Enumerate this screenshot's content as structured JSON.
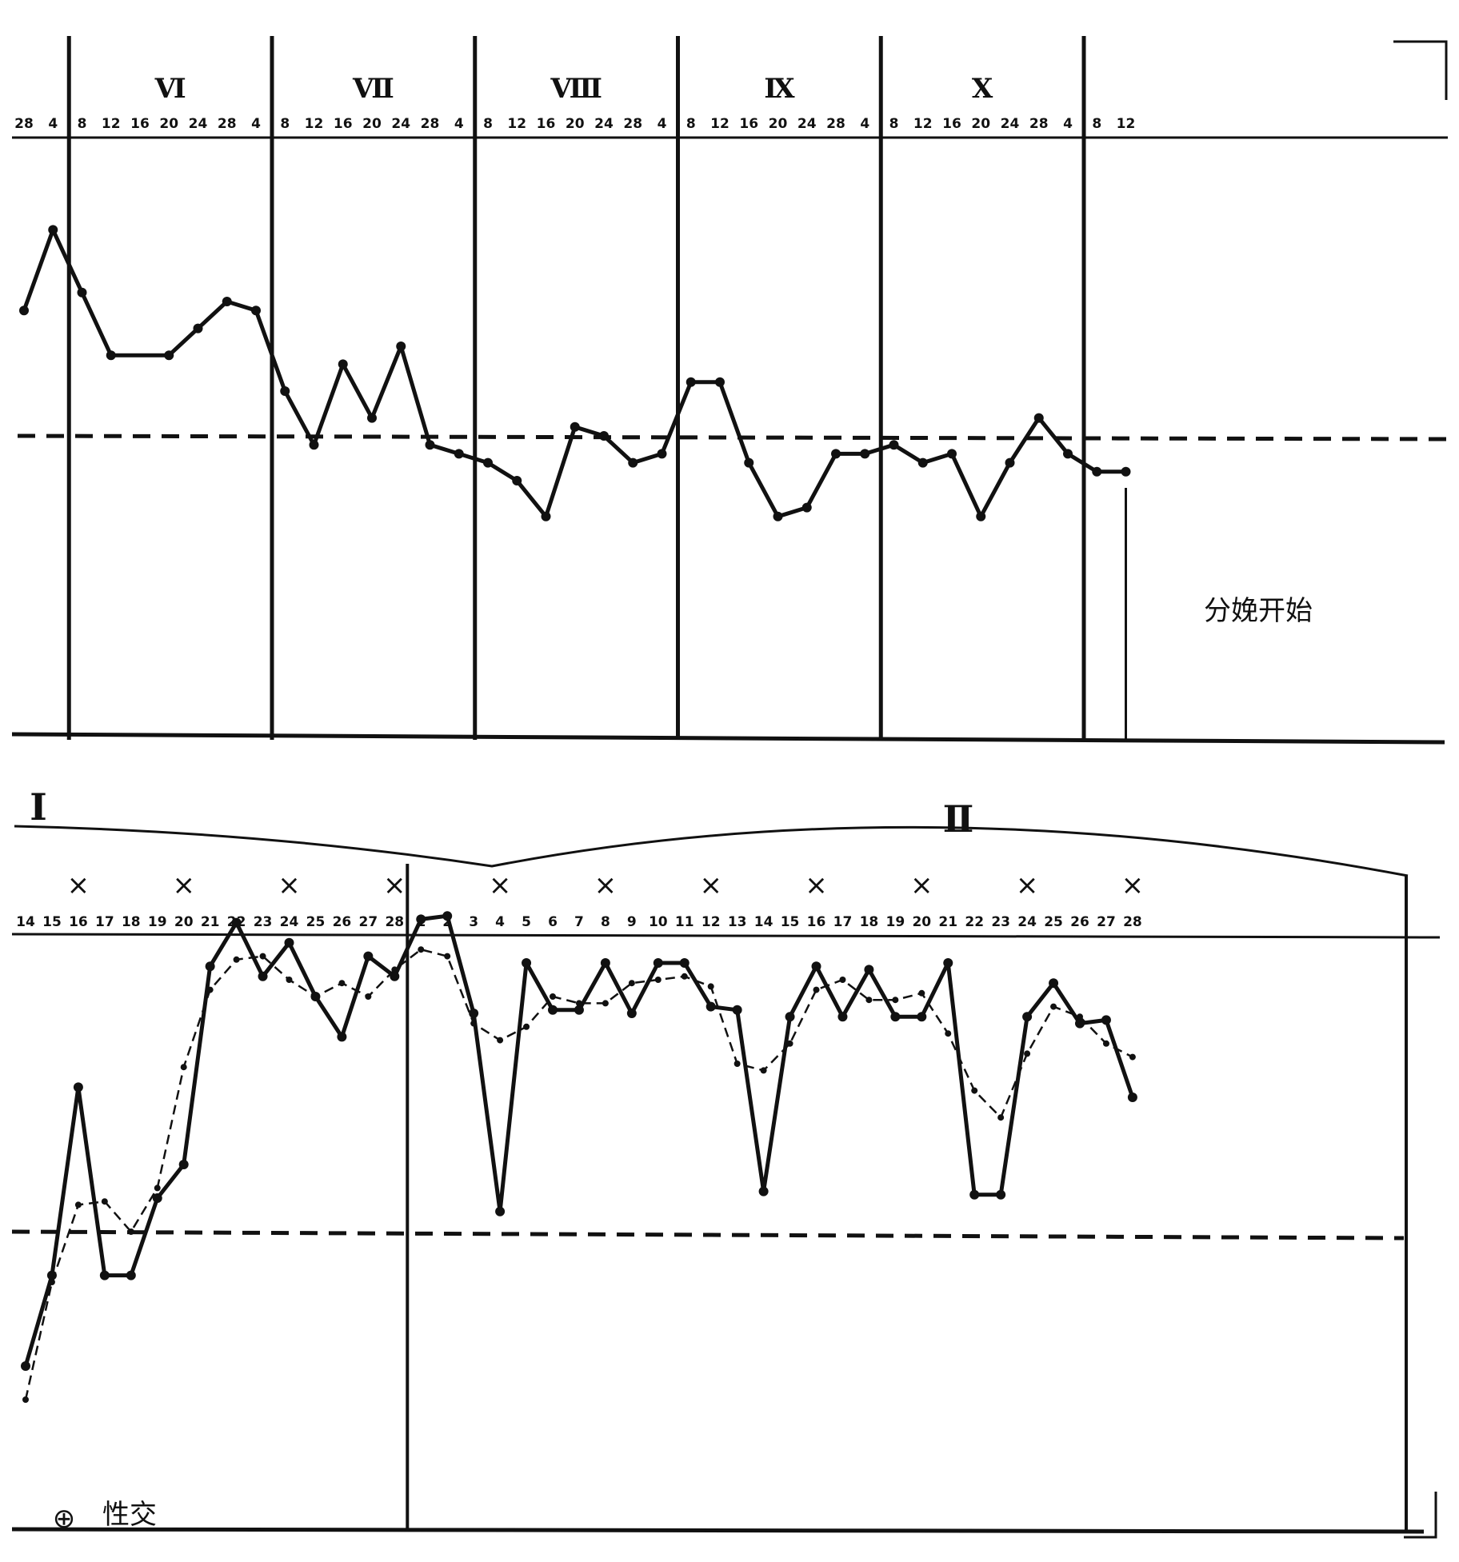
{
  "chart_data": [
    {
      "type": "line",
      "title": "",
      "xlabel": "",
      "ylabel": "",
      "month_labels": [
        "Ⅵ",
        "Ⅶ",
        "Ⅷ",
        "Ⅸ",
        "Ⅹ"
      ],
      "tick_labels": [
        "28",
        "4",
        "8",
        "12",
        "16",
        "20",
        "24",
        "28",
        "4",
        "8",
        "12",
        "16",
        "20",
        "24",
        "28",
        "4",
        "8",
        "12",
        "16",
        "20",
        "24",
        "28",
        "4",
        "8",
        "12",
        "16",
        "20",
        "24",
        "28",
        "4",
        "8",
        "12",
        "16",
        "20",
        "24",
        "28",
        "4",
        "8",
        "12"
      ],
      "threshold_level": 0,
      "series": [
        {
          "style": "solid",
          "points": [
            [
              0,
              1.4
            ],
            [
              1,
              2.3
            ],
            [
              2,
              1.6
            ],
            [
              3,
              0.9
            ],
            [
              5,
              0.9
            ],
            [
              6,
              1.2
            ],
            [
              7,
              1.5
            ],
            [
              8,
              1.4
            ],
            [
              9,
              0.5
            ],
            [
              10,
              -0.1
            ],
            [
              11,
              0.8
            ],
            [
              12,
              0.2
            ],
            [
              13,
              1.0
            ],
            [
              14,
              -0.1
            ],
            [
              15,
              -0.2
            ],
            [
              16,
              -0.3
            ],
            [
              17,
              -0.5
            ],
            [
              18,
              -0.9
            ],
            [
              19,
              0.1
            ],
            [
              20,
              0.0
            ],
            [
              21,
              -0.3
            ],
            [
              22,
              -0.2
            ],
            [
              23,
              0.6
            ],
            [
              24,
              0.6
            ],
            [
              25,
              -0.3
            ],
            [
              26,
              -0.9
            ],
            [
              27,
              -0.8
            ],
            [
              28,
              -0.2
            ],
            [
              29,
              -0.2
            ],
            [
              30,
              -0.1
            ],
            [
              31,
              -0.3
            ],
            [
              32,
              -0.2
            ],
            [
              33,
              -0.9
            ],
            [
              34,
              -0.3
            ],
            [
              35,
              0.2
            ],
            [
              36,
              -0.2
            ],
            [
              37,
              -0.4
            ],
            [
              38,
              -0.4
            ]
          ]
        }
      ],
      "annotation": {
        "text": "分娩开始",
        "x_index": 38
      }
    },
    {
      "type": "line",
      "title": "",
      "xlabel": "",
      "ylabel": "",
      "period_labels": [
        "Ⅰ",
        "Ⅱ"
      ],
      "tick_labels": [
        "14",
        "15",
        "16",
        "17",
        "18",
        "19",
        "20",
        "21",
        "22",
        "23",
        "24",
        "25",
        "26",
        "27",
        "28",
        "1",
        "2",
        "3",
        "4",
        "5",
        "6",
        "7",
        "8",
        "9",
        "10",
        "11",
        "12",
        "13",
        "14",
        "15",
        "16",
        "17",
        "18",
        "19",
        "20",
        "21",
        "22",
        "23",
        "24",
        "25",
        "26",
        "27",
        "28"
      ],
      "x_marks": [
        "16",
        "20",
        "24",
        "28",
        "4",
        "8",
        "12",
        "16",
        "20",
        "24",
        "28"
      ],
      "threshold_level": 0,
      "series": [
        {
          "style": "solid",
          "points": [
            [
              0,
              -0.4
            ],
            [
              1,
              -0.13
            ],
            [
              2,
              0.43
            ],
            [
              3,
              -0.13
            ],
            [
              4,
              -0.13
            ],
            [
              5,
              0.1
            ],
            [
              6,
              0.2
            ],
            [
              7,
              0.79
            ],
            [
              8,
              0.92
            ],
            [
              9,
              0.76
            ],
            [
              10,
              0.86
            ],
            [
              11,
              0.7
            ],
            [
              12,
              0.58
            ],
            [
              13,
              0.82
            ],
            [
              14,
              0.76
            ],
            [
              15,
              0.93
            ],
            [
              16,
              0.94
            ],
            [
              17,
              0.65
            ],
            [
              18,
              0.06
            ],
            [
              19,
              0.8
            ],
            [
              20,
              0.66
            ],
            [
              21,
              0.66
            ],
            [
              22,
              0.8
            ],
            [
              23,
              0.65
            ],
            [
              24,
              0.8
            ],
            [
              25,
              0.8
            ],
            [
              26,
              0.67
            ],
            [
              27,
              0.66
            ],
            [
              28,
              0.12
            ],
            [
              29,
              0.64
            ],
            [
              30,
              0.79
            ],
            [
              31,
              0.64
            ],
            [
              32,
              0.78
            ],
            [
              33,
              0.64
            ],
            [
              34,
              0.64
            ],
            [
              35,
              0.8
            ],
            [
              36,
              0.11
            ],
            [
              37,
              0.11
            ],
            [
              38,
              0.64
            ],
            [
              39,
              0.74
            ],
            [
              40,
              0.62
            ],
            [
              41,
              0.63
            ],
            [
              42,
              0.4
            ]
          ]
        },
        {
          "style": "dashed",
          "points": [
            [
              0,
              -0.5
            ],
            [
              1,
              -0.15
            ],
            [
              2,
              0.08
            ],
            [
              3,
              0.09
            ],
            [
              4,
              0.0
            ],
            [
              5,
              0.13
            ],
            [
              6,
              0.49
            ],
            [
              7,
              0.72
            ],
            [
              8,
              0.81
            ],
            [
              9,
              0.82
            ],
            [
              10,
              0.75
            ],
            [
              11,
              0.7
            ],
            [
              12,
              0.74
            ],
            [
              13,
              0.7
            ],
            [
              14,
              0.78
            ],
            [
              15,
              0.84
            ],
            [
              16,
              0.82
            ],
            [
              17,
              0.62
            ],
            [
              18,
              0.57
            ],
            [
              19,
              0.61
            ],
            [
              20,
              0.7
            ],
            [
              21,
              0.68
            ],
            [
              22,
              0.68
            ],
            [
              23,
              0.74
            ],
            [
              24,
              0.75
            ],
            [
              25,
              0.76
            ],
            [
              26,
              0.73
            ],
            [
              27,
              0.5
            ],
            [
              28,
              0.48
            ],
            [
              29,
              0.56
            ],
            [
              30,
              0.72
            ],
            [
              31,
              0.75
            ],
            [
              32,
              0.69
            ],
            [
              33,
              0.69
            ],
            [
              34,
              0.71
            ],
            [
              35,
              0.59
            ],
            [
              36,
              0.42
            ],
            [
              37,
              0.34
            ],
            [
              38,
              0.53
            ],
            [
              39,
              0.67
            ],
            [
              40,
              0.64
            ],
            [
              41,
              0.56
            ],
            [
              42,
              0.52
            ]
          ]
        }
      ],
      "annotation": {
        "text": "性交",
        "symbol": "⊕"
      }
    }
  ]
}
